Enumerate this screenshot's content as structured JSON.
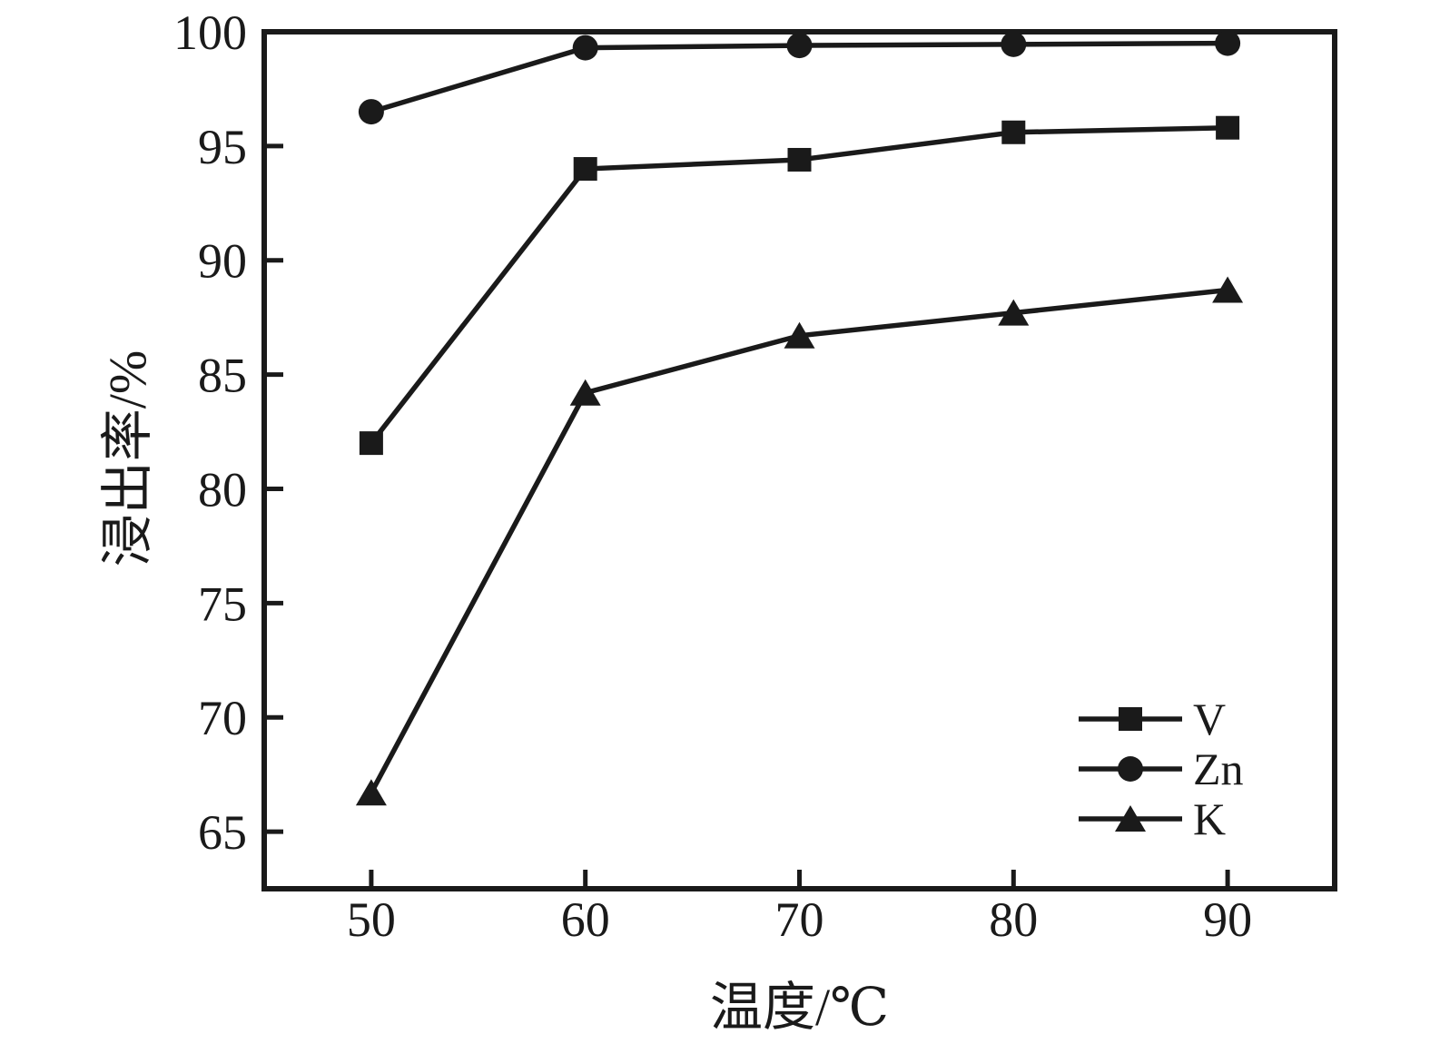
{
  "figure": {
    "background": "#ffffff",
    "ink_color": "#1a1a1a"
  },
  "chart_data": {
    "type": "line",
    "title": "",
    "xlabel": "温度/℃",
    "ylabel": "浸出率/%",
    "x": [
      50,
      60,
      70,
      80,
      90
    ],
    "xlim": [
      45,
      95
    ],
    "ylim": [
      62.5,
      100
    ],
    "x_ticks": [
      50,
      60,
      70,
      80,
      90
    ],
    "y_ticks": [
      65,
      70,
      75,
      80,
      85,
      90,
      95,
      100
    ],
    "grid": false,
    "legend_position": "lower-right",
    "series": [
      {
        "name": "V",
        "marker": "square",
        "values": [
          82.0,
          94.0,
          94.4,
          95.6,
          95.8
        ]
      },
      {
        "name": "Zn",
        "marker": "circle",
        "values": [
          96.5,
          99.3,
          99.4,
          99.45,
          99.5
        ]
      },
      {
        "name": "K",
        "marker": "triangle",
        "values": [
          66.7,
          84.2,
          86.7,
          87.7,
          88.7
        ]
      }
    ]
  }
}
